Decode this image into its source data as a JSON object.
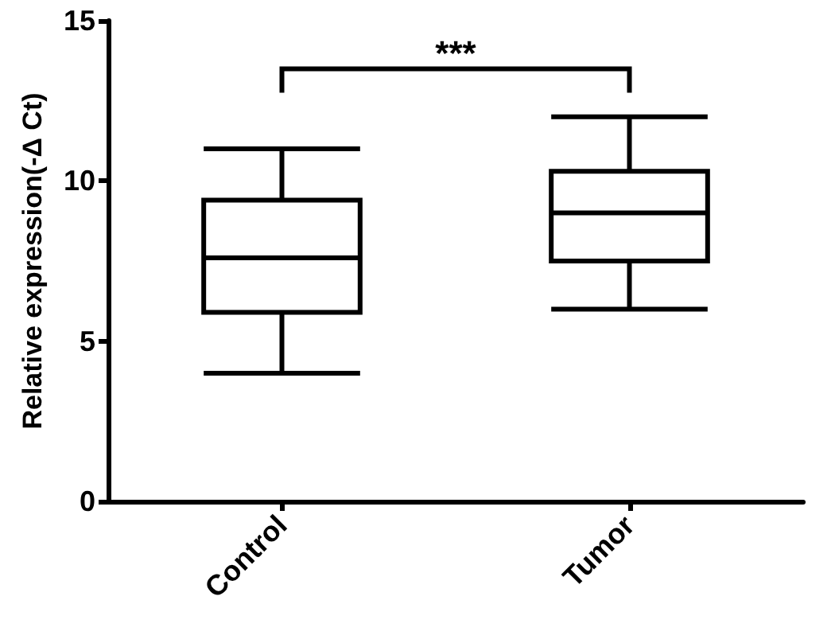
{
  "chart_data": {
    "type": "box",
    "ylabel": "Relative expression(-Δ Ct)",
    "categories": [
      "Control",
      "Tumor"
    ],
    "boxes": [
      {
        "low": 4.0,
        "q1": 5.9,
        "median": 7.6,
        "q3": 9.4,
        "high": 11.0
      },
      {
        "low": 6.0,
        "q1": 7.5,
        "median": 9.0,
        "q3": 10.3,
        "high": 12.0
      }
    ],
    "color": "#000000",
    "ylim": [
      0,
      15
    ],
    "yticks": [
      0,
      5,
      10,
      15
    ],
    "grid": false,
    "annotations": [
      "***"
    ]
  }
}
